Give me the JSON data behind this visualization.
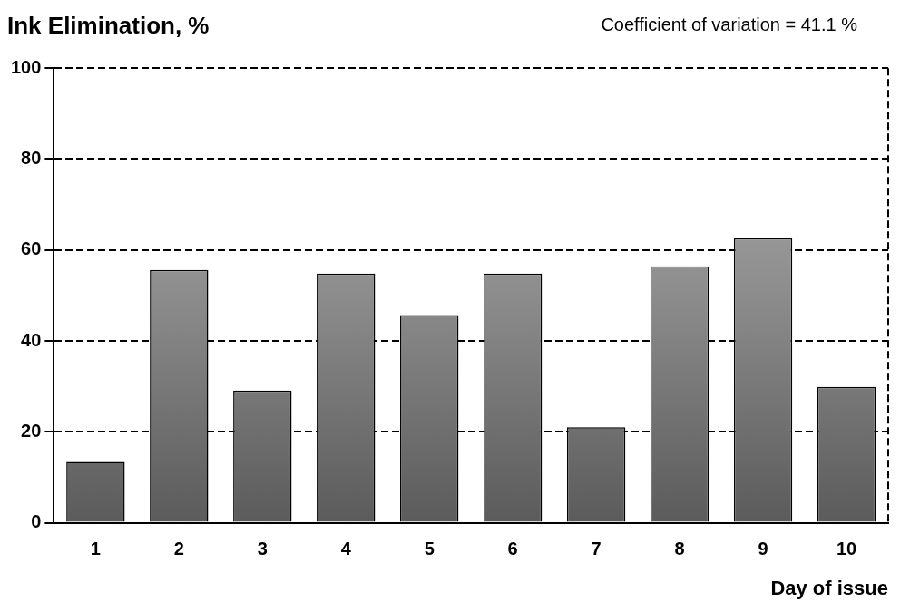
{
  "chart_data": {
    "type": "bar",
    "title": "Ink Elimination, %",
    "annotations": [
      "Coefficient of variation = 41.1 %"
    ],
    "xlabel": "Day of issue",
    "categories": [
      "1",
      "2",
      "3",
      "4",
      "5",
      "6",
      "7",
      "8",
      "9",
      "10"
    ],
    "values": [
      13.4,
      55.6,
      29.1,
      54.8,
      45.7,
      54.8,
      21.0,
      56.4,
      62.6,
      29.9
    ],
    "color": "#8c8c8c",
    "ylim": [
      0,
      100
    ],
    "yticks": [
      0,
      20,
      40,
      60,
      80,
      100
    ],
    "grid": "y",
    "legend": false
  }
}
